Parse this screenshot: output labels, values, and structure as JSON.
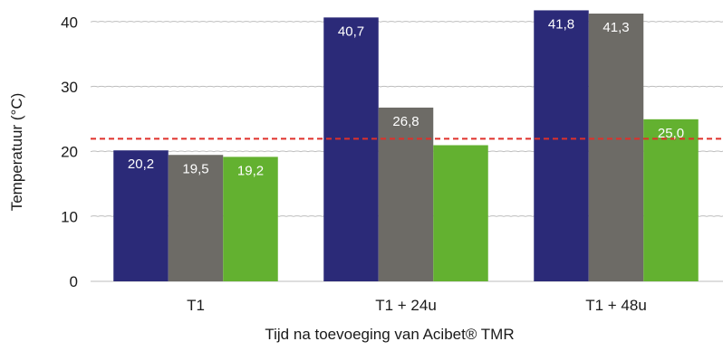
{
  "chart_data": {
    "type": "bar",
    "title": "",
    "xlabel": "Tijd na toevoeging van Acibet® TMR",
    "ylabel": "Temperatuur (°C)",
    "ylim": [
      0,
      42
    ],
    "yticks": [
      0,
      10,
      20,
      30,
      40
    ],
    "grid": true,
    "categories": [
      "T1",
      "T1 + 24u",
      "T1 + 48u"
    ],
    "series": [
      {
        "color": "#2b2a78",
        "values": [
          20.2,
          40.7,
          41.8
        ],
        "labels": [
          "20,2",
          "40,7",
          "41,8"
        ]
      },
      {
        "color": "#6d6b66",
        "values": [
          19.5,
          26.8,
          41.3
        ],
        "labels": [
          "19,5",
          "26,8",
          "41,3"
        ]
      },
      {
        "color": "#63b130",
        "values": [
          19.2,
          21.0,
          25.0
        ],
        "labels": [
          "19,2",
          "",
          "25,0"
        ]
      }
    ],
    "reference_line": {
      "value": 22,
      "color": "#e0302a",
      "style": "dashed"
    },
    "legend": "none"
  }
}
